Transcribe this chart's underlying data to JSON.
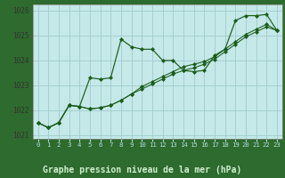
{
  "xlabel": "Graphe pression niveau de la mer (hPa)",
  "background_color": "#c5e8e8",
  "plot_bg_color": "#c5e8e8",
  "bottom_bg_color": "#2e6b2e",
  "grid_color": "#a0cccc",
  "line_color": "#1a5c1a",
  "xlim": [
    -0.5,
    23.5
  ],
  "ylim": [
    1020.85,
    1026.25
  ],
  "yticks": [
    1021,
    1022,
    1023,
    1024,
    1025,
    1026
  ],
  "xticks": [
    0,
    1,
    2,
    3,
    4,
    5,
    6,
    7,
    8,
    9,
    10,
    11,
    12,
    13,
    14,
    15,
    16,
    17,
    18,
    19,
    20,
    21,
    22,
    23
  ],
  "series1": [
    1021.5,
    1021.3,
    1021.5,
    1022.2,
    1022.15,
    1023.3,
    1023.25,
    1023.3,
    1024.85,
    1024.55,
    1024.45,
    1024.45,
    1024.0,
    1024.0,
    1023.6,
    1023.55,
    1023.6,
    1024.2,
    1024.45,
    1025.6,
    1025.8,
    1025.8,
    1025.85,
    1025.2
  ],
  "series2": [
    1021.5,
    1021.3,
    1021.5,
    1022.2,
    1022.15,
    1022.05,
    1022.1,
    1022.2,
    1022.4,
    1022.65,
    1022.85,
    1023.05,
    1023.25,
    1023.45,
    1023.6,
    1023.7,
    1023.85,
    1024.05,
    1024.35,
    1024.65,
    1024.95,
    1025.15,
    1025.35,
    1025.2
  ],
  "series3": [
    1021.5,
    1021.3,
    1021.5,
    1022.2,
    1022.15,
    1022.05,
    1022.1,
    1022.2,
    1022.4,
    1022.65,
    1022.95,
    1023.15,
    1023.35,
    1023.55,
    1023.75,
    1023.85,
    1023.95,
    1024.15,
    1024.45,
    1024.75,
    1025.05,
    1025.25,
    1025.45,
    1025.2
  ],
  "xtick_fontsize": 5.2,
  "ytick_fontsize": 5.5,
  "xlabel_fontsize": 7.0,
  "tick_color": "#b8e0e0",
  "xlabel_color": "#d0f0d0"
}
